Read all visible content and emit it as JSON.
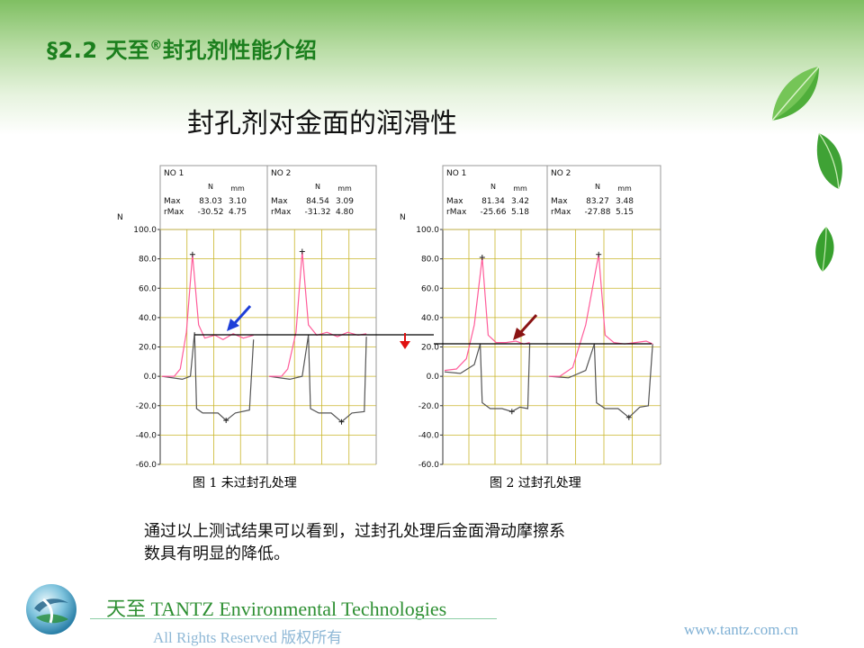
{
  "header": {
    "section": "§2.2 天至",
    "registered": "®",
    "section_rest": "封孔剂性能介绍",
    "slide_title": "封孔剂对金面的润滑性"
  },
  "chart_data": [
    {
      "type": "line",
      "caption": "图 1   未过封孔处理",
      "ylabel": "N",
      "ylim": [
        -60,
        100
      ],
      "yticks": [
        "100.0",
        "80.0",
        "60.0",
        "40.0",
        "20.0",
        "0.0",
        "-20.0",
        "-40.0",
        "-60.0"
      ],
      "reference_line": 28,
      "panels": [
        {
          "no_label": "NO",
          "no_value": "1",
          "unit_force": "N",
          "unit_disp": "mm",
          "max_label": "Max",
          "max_force": "83.03",
          "max_disp": "3.10",
          "rmax_label": "rMax",
          "rmax_force": "-30.52",
          "rmax_disp": "4.75",
          "pink": [
            [
              0,
              0
            ],
            [
              0.12,
              0
            ],
            [
              0.18,
              5
            ],
            [
              0.24,
              30
            ],
            [
              0.3,
              83
            ],
            [
              0.36,
              35
            ],
            [
              0.42,
              26
            ],
            [
              0.52,
              28
            ],
            [
              0.6,
              25
            ],
            [
              0.7,
              29
            ],
            [
              0.8,
              26
            ],
            [
              0.9,
              28
            ]
          ],
          "gray": [
            [
              0,
              0
            ],
            [
              0.2,
              -2
            ],
            [
              0.28,
              0
            ],
            [
              0.32,
              30
            ],
            [
              0.34,
              -22
            ],
            [
              0.4,
              -25
            ],
            [
              0.55,
              -25
            ],
            [
              0.63,
              -30
            ],
            [
              0.72,
              -25
            ],
            [
              0.86,
              -23
            ],
            [
              0.9,
              25
            ]
          ]
        },
        {
          "no_label": "NO",
          "no_value": "2",
          "unit_force": "N",
          "unit_disp": "mm",
          "max_label": "Max",
          "max_force": "84.54",
          "max_disp": "3.09",
          "rmax_label": "rMax",
          "rmax_force": "-31.32",
          "rmax_disp": "4.80",
          "pink": [
            [
              0,
              0
            ],
            [
              0.12,
              0
            ],
            [
              0.18,
              5
            ],
            [
              0.26,
              30
            ],
            [
              0.32,
              85
            ],
            [
              0.38,
              35
            ],
            [
              0.46,
              28
            ],
            [
              0.56,
              30
            ],
            [
              0.66,
              27
            ],
            [
              0.76,
              30
            ],
            [
              0.86,
              28
            ],
            [
              0.94,
              29
            ]
          ],
          "gray": [
            [
              0,
              0
            ],
            [
              0.2,
              -2
            ],
            [
              0.32,
              0
            ],
            [
              0.38,
              28
            ],
            [
              0.4,
              -22
            ],
            [
              0.48,
              -25
            ],
            [
              0.6,
              -25
            ],
            [
              0.7,
              -31
            ],
            [
              0.8,
              -25
            ],
            [
              0.92,
              -24
            ],
            [
              0.94,
              27
            ]
          ]
        }
      ]
    },
    {
      "type": "line",
      "caption": "图 2  过封孔处理",
      "ylabel": "N",
      "ylim": [
        -60,
        100
      ],
      "yticks": [
        "100.0",
        "80.0",
        "60.0",
        "40.0",
        "20.0",
        "0.0",
        "-20.0",
        "-40.0",
        "-60.0"
      ],
      "reference_line": 22,
      "panels": [
        {
          "no_label": "NO",
          "no_value": "1",
          "unit_force": "N",
          "unit_disp": "mm",
          "max_label": "Max",
          "max_force": "81.34",
          "max_disp": "3.42",
          "rmax_label": "rMax",
          "rmax_force": "-25.66",
          "rmax_disp": "5.18",
          "pink": [
            [
              0,
              4
            ],
            [
              0.12,
              5
            ],
            [
              0.22,
              12
            ],
            [
              0.3,
              35
            ],
            [
              0.38,
              81
            ],
            [
              0.44,
              28
            ],
            [
              0.52,
              23
            ],
            [
              0.62,
              23
            ],
            [
              0.72,
              24
            ],
            [
              0.8,
              22
            ],
            [
              0.86,
              23
            ]
          ],
          "gray": [
            [
              0,
              3
            ],
            [
              0.16,
              2
            ],
            [
              0.3,
              8
            ],
            [
              0.36,
              22
            ],
            [
              0.38,
              -18
            ],
            [
              0.46,
              -22
            ],
            [
              0.58,
              -22
            ],
            [
              0.68,
              -24
            ],
            [
              0.76,
              -21
            ],
            [
              0.84,
              -22
            ],
            [
              0.86,
              22
            ]
          ]
        },
        {
          "no_label": "NO",
          "no_value": "2",
          "unit_force": "N",
          "unit_disp": "mm",
          "max_label": "Max",
          "max_force": "83.27",
          "max_disp": "3.48",
          "rmax_label": "rMax",
          "rmax_force": "-27.88",
          "rmax_disp": "5.15",
          "pink": [
            [
              0,
              0
            ],
            [
              0.1,
              0
            ],
            [
              0.22,
              6
            ],
            [
              0.34,
              35
            ],
            [
              0.46,
              83
            ],
            [
              0.52,
              28
            ],
            [
              0.6,
              23
            ],
            [
              0.7,
              22
            ],
            [
              0.8,
              23
            ],
            [
              0.9,
              24
            ],
            [
              0.96,
              22
            ]
          ],
          "gray": [
            [
              0,
              0
            ],
            [
              0.18,
              -1
            ],
            [
              0.34,
              4
            ],
            [
              0.42,
              22
            ],
            [
              0.44,
              -18
            ],
            [
              0.52,
              -22
            ],
            [
              0.64,
              -22
            ],
            [
              0.74,
              -28
            ],
            [
              0.84,
              -21
            ],
            [
              0.92,
              -20
            ],
            [
              0.96,
              22
            ]
          ]
        }
      ]
    }
  ],
  "conclusion": {
    "line1": "通过以上测试结果可以看到，过封孔处理后金面滑动摩擦系",
    "line2": "数具有明显的降低。"
  },
  "footer": {
    "company": "天至 TANTZ  Environmental Technologies",
    "rights": "All  Rights  Reserved    版权所有",
    "url": "www.tantz.com.cn"
  },
  "colors": {
    "heading_green": "#1b7f1d",
    "grid_yellow": "#c9b52a",
    "curve_pink": "#ff5c9a",
    "curve_gray": "#555555",
    "arrow_blue": "#1e3fd8",
    "arrow_darkred": "#8a1414",
    "arrow_red": "#e01010"
  },
  "icons": {
    "leaves": "leaf-icon",
    "logo": "globe-logo-icon"
  }
}
